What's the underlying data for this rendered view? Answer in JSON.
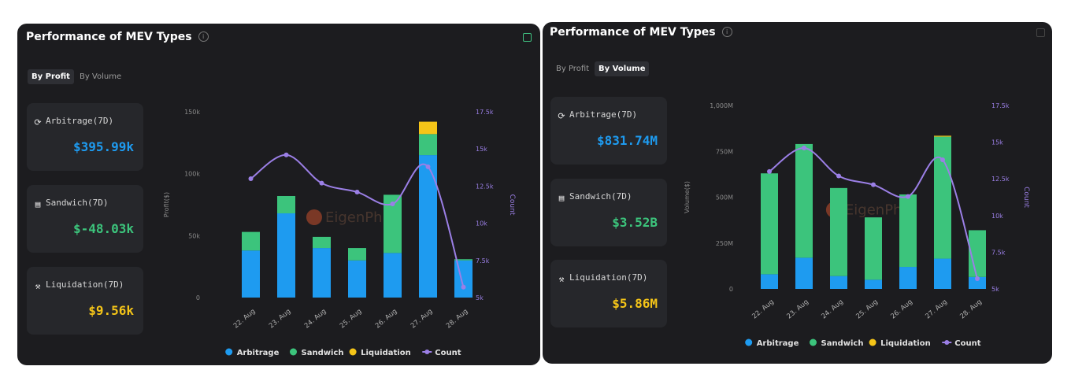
{
  "colors": {
    "arbitrage": "#1e9bf0",
    "sandwich": "#3cc47c",
    "liquidation": "#f5c518",
    "count": "#9b7fe6",
    "value_arbitrage": "#1e9bf0",
    "value_sandwich": "#3cc47c",
    "value_liquidation": "#f5c518"
  },
  "watermark": "EigenPhi",
  "panels": [
    {
      "title": "Performance of MEV Types",
      "tabs": [
        {
          "label": "By Profit",
          "active": true
        },
        {
          "label": "By Volume",
          "active": false
        }
      ],
      "cards": [
        {
          "icon": "arbitrage-icon",
          "label": "Arbitrage(7D)",
          "value": "$395.99k"
        },
        {
          "icon": "sandwich-icon",
          "label": "Sandwich(7D)",
          "value": "$-48.03k"
        },
        {
          "icon": "liquidation-icon",
          "label": "Liquidation(7D)",
          "value": "$9.56k"
        }
      ]
    },
    {
      "title": "Performance of MEV Types",
      "tabs": [
        {
          "label": "By Profit",
          "active": false
        },
        {
          "label": "By Volume",
          "active": true
        }
      ],
      "cards": [
        {
          "icon": "arbitrage-icon",
          "label": "Arbitrage(7D)",
          "value": "$831.74M"
        },
        {
          "icon": "sandwich-icon",
          "label": "Sandwich(7D)",
          "value": "$3.52B"
        },
        {
          "icon": "liquidation-icon",
          "label": "Liquidation(7D)",
          "value": "$5.86M"
        }
      ]
    }
  ],
  "chart_data": [
    {
      "type": "bar",
      "title": "Performance of MEV Types - By Profit",
      "categories": [
        "22. Aug",
        "23. Aug",
        "24. Aug",
        "25. Aug",
        "26. Aug",
        "27. Aug",
        "28. Aug"
      ],
      "stacked": true,
      "ylabel": "Profit($)",
      "ylim": [
        0,
        150000
      ],
      "yticks": [
        0,
        50000,
        100000,
        150000
      ],
      "ytick_labels": [
        "0",
        "50k",
        "100k",
        "150k"
      ],
      "y2label": "Count",
      "y2lim": [
        5000,
        17500
      ],
      "y2ticks": [
        5000,
        7500,
        10000,
        12500,
        15000,
        17500
      ],
      "y2tick_labels": [
        "5k",
        "7.5k",
        "10k",
        "12.5k",
        "15k",
        "17.5k"
      ],
      "series": [
        {
          "name": "Arbitrage",
          "type": "bar",
          "values": [
            38000,
            68000,
            40000,
            30000,
            36000,
            115000,
            30000
          ]
        },
        {
          "name": "Sandwich",
          "type": "bar",
          "values": [
            15000,
            14000,
            9000,
            10000,
            47000,
            17000,
            1000
          ]
        },
        {
          "name": "Liquidation",
          "type": "bar",
          "values": [
            0,
            0,
            0,
            0,
            0,
            10000,
            0
          ]
        },
        {
          "name": "Count",
          "type": "line",
          "axis": "right",
          "values": [
            13000,
            14600,
            12700,
            12100,
            11300,
            13800,
            5700
          ]
        }
      ],
      "legend": [
        "Arbitrage",
        "Sandwich",
        "Liquidation",
        "Count"
      ],
      "legend_position": "bottom"
    },
    {
      "type": "bar",
      "title": "Performance of MEV Types - By Volume",
      "categories": [
        "22. Aug",
        "23. Aug",
        "24. Aug",
        "25. Aug",
        "26. Aug",
        "27. Aug",
        "28. Aug"
      ],
      "stacked": true,
      "ylabel": "Volume($)",
      "ylim": [
        0,
        1000
      ],
      "yticks": [
        0,
        250,
        500,
        750,
        1000
      ],
      "ytick_labels": [
        "0",
        "250M",
        "500M",
        "750M",
        "1,000M"
      ],
      "y2label": "Count",
      "y2lim": [
        5000,
        17500
      ],
      "y2ticks": [
        5000,
        7500,
        10000,
        12500,
        15000,
        17500
      ],
      "y2tick_labels": [
        "5k",
        "7.5k",
        "10k",
        "12.5k",
        "15k",
        "17.5k"
      ],
      "series": [
        {
          "name": "Arbitrage",
          "type": "bar",
          "values": [
            80,
            170,
            70,
            50,
            120,
            165,
            65
          ]
        },
        {
          "name": "Sandwich",
          "type": "bar",
          "values": [
            550,
            620,
            480,
            340,
            395,
            665,
            255
          ]
        },
        {
          "name": "Liquidation",
          "type": "bar",
          "values": [
            0,
            0,
            0,
            0,
            0,
            5,
            0
          ]
        },
        {
          "name": "Count",
          "type": "line",
          "axis": "right",
          "values": [
            13000,
            14600,
            12700,
            12100,
            11300,
            13800,
            5700
          ]
        }
      ],
      "legend": [
        "Arbitrage",
        "Sandwich",
        "Liquidation",
        "Count"
      ],
      "legend_position": "bottom"
    }
  ]
}
